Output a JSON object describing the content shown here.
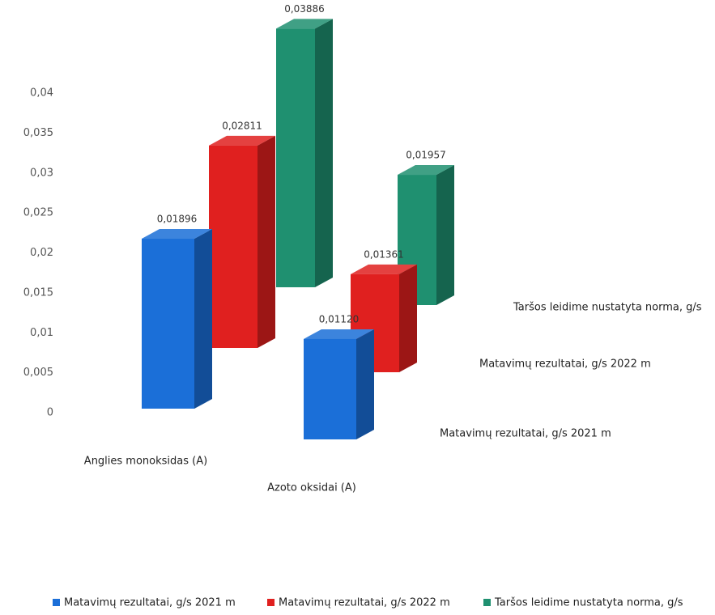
{
  "chart_data": {
    "type": "bar3d",
    "categories": [
      "Anglies monoksidas (A)",
      "Azoto oksidai (A)"
    ],
    "series": [
      {
        "name": "Matavimų rezultatai, g/s 2021 m",
        "color": "#1b6fd8",
        "values": [
          0.01896,
          0.0112
        ],
        "value_labels": [
          "0,01896",
          "0,01120"
        ]
      },
      {
        "name": "Matavimų rezultatai, g/s 2022 m",
        "color": "#e0201f",
        "values": [
          0.02811,
          0.01361
        ],
        "value_labels": [
          "0,02811",
          "0,01361"
        ]
      },
      {
        "name": "Taršos leidime nustatyta norma, g/s",
        "color": "#1f9070",
        "values": [
          0.03886,
          0.01957
        ],
        "value_labels": [
          "0,03886",
          "0,01957"
        ]
      }
    ],
    "ylim": [
      0,
      0.04
    ],
    "yticks": [
      0,
      {
        "value": 0.005,
        "label": "0,005"
      },
      {
        "value": 0.01,
        "label": "0,01"
      },
      {
        "value": 0.015,
        "label": "0,015"
      },
      {
        "value": 0.02,
        "label": "0,02"
      },
      {
        "value": 0.025,
        "label": "0,025"
      },
      {
        "value": 0.03,
        "label": "0,03"
      },
      {
        "value": 0.035,
        "label": "0,035"
      },
      {
        "value": 0.04,
        "label": "0,04"
      }
    ]
  }
}
